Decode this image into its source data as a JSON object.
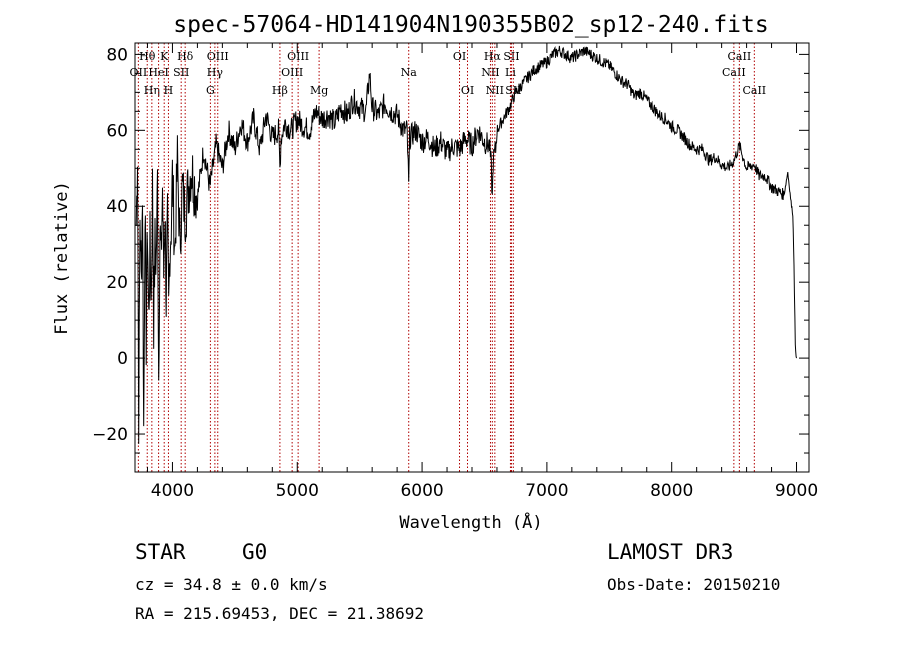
{
  "chart_data": {
    "type": "line",
    "title": "spec-57064-HD141904N190355B02_sp12-240.fits",
    "xlabel": "Wavelength (Å)",
    "ylabel": "Flux (relative)",
    "xlim": [
      3700,
      9100
    ],
    "ylim": [
      -30,
      83
    ],
    "xticks": [
      4000,
      5000,
      6000,
      7000,
      8000,
      9000
    ],
    "yticks": [
      -20,
      0,
      20,
      40,
      60,
      80
    ],
    "series": [
      {
        "name": "flux",
        "x": [
          3710,
          3720,
          3730,
          3740,
          3750,
          3760,
          3770,
          3780,
          3790,
          3800,
          3810,
          3820,
          3830,
          3840,
          3850,
          3860,
          3870,
          3880,
          3890,
          3900,
          3910,
          3920,
          3930,
          3940,
          3950,
          3960,
          3970,
          3980,
          3990,
          4000,
          4020,
          4040,
          4060,
          4080,
          4100,
          4150,
          4200,
          4250,
          4300,
          4350,
          4400,
          4450,
          4500,
          4550,
          4600,
          4650,
          4700,
          4750,
          4800,
          4850,
          4861,
          4870,
          4900,
          4950,
          5000,
          5050,
          5100,
          5150,
          5200,
          5250,
          5300,
          5350,
          5400,
          5450,
          5500,
          5550,
          5580,
          5600,
          5650,
          5700,
          5750,
          5800,
          5850,
          5880,
          5893,
          5900,
          5950,
          6000,
          6050,
          6100,
          6150,
          6200,
          6250,
          6300,
          6350,
          6400,
          6450,
          6500,
          6540,
          6555,
          6563,
          6570,
          6590,
          6600,
          6650,
          6700,
          6750,
          6800,
          6850,
          6900,
          6950,
          7000,
          7050,
          7100,
          7150,
          7200,
          7250,
          7300,
          7350,
          7400,
          7450,
          7500,
          7550,
          7600,
          7650,
          7700,
          7750,
          7800,
          7850,
          7900,
          7950,
          8000,
          8050,
          8100,
          8150,
          8200,
          8250,
          8300,
          8350,
          8400,
          8450,
          8498,
          8542,
          8600,
          8662,
          8700,
          8750,
          8800,
          8850,
          8900,
          8930,
          8960,
          8970,
          8980,
          8990,
          9000
        ],
        "y": [
          35,
          55,
          -15,
          38,
          20,
          45,
          -19,
          42,
          5,
          35,
          10,
          30,
          15,
          45,
          10,
          30,
          25,
          47,
          -5,
          35,
          25,
          45,
          22,
          40,
          15,
          35,
          12,
          30,
          35,
          48,
          28,
          52,
          30,
          45,
          38,
          50,
          42,
          55,
          45,
          56,
          50,
          60,
          55,
          62,
          57,
          63,
          55,
          64,
          58,
          60,
          50,
          58,
          62,
          60,
          63,
          61,
          60,
          65,
          63,
          64,
          62,
          66,
          64,
          68,
          66,
          65,
          75,
          66,
          64,
          67,
          65,
          64,
          60,
          60,
          45,
          58,
          60,
          57,
          58,
          55,
          57,
          54,
          56,
          55,
          58,
          56,
          60,
          57,
          56,
          50,
          42,
          52,
          55,
          60,
          63,
          66,
          70,
          72,
          74,
          76,
          77,
          78,
          80,
          81,
          80,
          79,
          80,
          81,
          80,
          79,
          78,
          77,
          75,
          73,
          72,
          69,
          70,
          68,
          66,
          64,
          63,
          61,
          60,
          58,
          56,
          55,
          55,
          52,
          53,
          51,
          50,
          52,
          56,
          50,
          51,
          48,
          48,
          45,
          44,
          43,
          49,
          40,
          38,
          25,
          3,
          0
        ]
      }
    ],
    "spectral_lines": [
      {
        "label": "OII",
        "wavelength": 3727,
        "row": 1
      },
      {
        "label": "Hθ",
        "wavelength": 3798,
        "row": 0
      },
      {
        "label": "Hη",
        "wavelength": 3835,
        "row": 2
      },
      {
        "label": "HeI",
        "wavelength": 3889,
        "row": 1
      },
      {
        "label": "K",
        "wavelength": 3934,
        "row": 0
      },
      {
        "label": "H",
        "wavelength": 3968,
        "row": 2
      },
      {
        "label": "SII",
        "wavelength": 4070,
        "row": 1
      },
      {
        "label": "Hδ",
        "wavelength": 4102,
        "row": 0
      },
      {
        "label": "G",
        "wavelength": 4304,
        "row": 2
      },
      {
        "label": "Hγ",
        "wavelength": 4340,
        "row": 1
      },
      {
        "label": "OIII",
        "wavelength": 4363,
        "row": 0
      },
      {
        "label": "Hβ",
        "wavelength": 4861,
        "row": 2
      },
      {
        "label": "OIII",
        "wavelength": 4959,
        "row": 1
      },
      {
        "label": "OIII",
        "wavelength": 5007,
        "row": 0
      },
      {
        "label": "Mg",
        "wavelength": 5175,
        "row": 2
      },
      {
        "label": "Na",
        "wavelength": 5893,
        "row": 1
      },
      {
        "label": "OI",
        "wavelength": 6300,
        "row": 0
      },
      {
        "label": "OI",
        "wavelength": 6364,
        "row": 2
      },
      {
        "label": "NII",
        "wavelength": 6548,
        "row": 1
      },
      {
        "label": "Hα",
        "wavelength": 6563,
        "row": 0
      },
      {
        "label": "NII",
        "wavelength": 6583,
        "row": 2
      },
      {
        "label": "Li",
        "wavelength": 6708,
        "row": 1
      },
      {
        "label": "SII",
        "wavelength": 6716,
        "row": 0
      },
      {
        "label": "SII",
        "wavelength": 6731,
        "row": 2
      },
      {
        "label": "CaII",
        "wavelength": 8498,
        "row": 1
      },
      {
        "label": "CaII",
        "wavelength": 8542,
        "row": 0
      },
      {
        "label": "CaII",
        "wavelength": 8662,
        "row": 2
      }
    ]
  },
  "info": {
    "object_class": "STAR",
    "subclass": "G0",
    "survey": "LAMOST DR3",
    "cz_line": "cz = 34.8 ± 0.0 km/s",
    "obs_date": "Obs-Date: 20150210",
    "coords": "RA = 215.69453, DEC =  21.38692"
  },
  "colors": {
    "spectrum": "#000000",
    "line_marker": "#b00000",
    "axes": "#000000"
  }
}
